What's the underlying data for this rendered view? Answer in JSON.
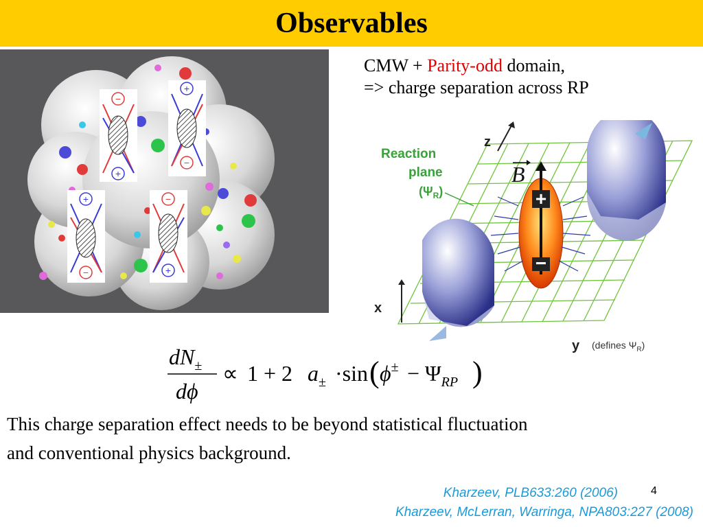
{
  "slide": {
    "title": "Observables",
    "page_number": "4"
  },
  "right_text": {
    "line1_prefix": "CMW + ",
    "line1_highlight": "Parity-odd",
    "line1_suffix": " domain,",
    "line2": "=> charge separation across RP"
  },
  "diagram": {
    "reaction_plane_label_1": "Reaction",
    "reaction_plane_label_2": "plane",
    "reaction_plane_label_3": "(Ψ",
    "reaction_plane_label_sub": "R",
    "reaction_plane_label_4": ")",
    "axis_z": "z",
    "axis_x": "x",
    "axis_y": "y",
    "axis_y_note": "(defines Ψ",
    "axis_y_note_sub": "R",
    "axis_y_note_end": ")",
    "b_field": "B",
    "plus_sign": "+",
    "minus_sign": "−"
  },
  "left_figure": {
    "panel_charges": [
      "−",
      "+",
      "+",
      "−",
      "+",
      "−",
      "−",
      "+"
    ]
  },
  "formula": {
    "numerator": "dN",
    "numerator_sub": "±",
    "denominator": "dϕ",
    "proportional": "∝",
    "one_plus": "1 + 2",
    "a": "a",
    "a_sub": "±",
    "dot_sin": "·sin",
    "phi": "ϕ",
    "phi_sup": "±",
    "minus_psi": " − Ψ",
    "psi_sub": "RP"
  },
  "body": {
    "line1": "This charge separation effect needs to be beyond statistical fluctuation",
    "line2": "and conventional physics background."
  },
  "references": {
    "ref1": "Kharzeev, PLB633:260 (2006)",
    "ref2": "Kharzeev, McLerran, Warringa, NPA803:227 (2008)"
  },
  "colors": {
    "title_bar": "#ffcc00",
    "highlight_red": "#e00000",
    "reference_blue": "#1a9ad8",
    "plane_green": "#6ec43a",
    "label_green": "#3aa13a"
  }
}
